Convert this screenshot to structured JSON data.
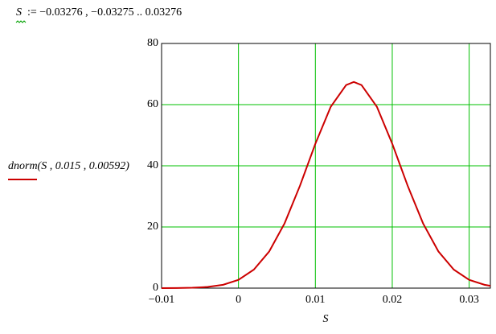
{
  "definition": {
    "variable": "S",
    "expression": ":= −0.03276 , −0.03275 .. 0.03276"
  },
  "chart_data": {
    "type": "line",
    "ylabel": "dnorm(S , 0.015 , 0.00592)",
    "xlabel": "S",
    "x": [
      -0.01,
      -0.008,
      -0.006,
      -0.004,
      -0.002,
      0,
      0.002,
      0.004,
      0.006,
      0.008,
      0.01,
      0.012,
      0.014,
      0.015,
      0.016,
      0.018,
      0.02,
      0.022,
      0.024,
      0.026,
      0.028,
      0.03,
      0.032,
      0.03276
    ],
    "values": [
      0.009,
      0.036,
      0.125,
      0.391,
      1.09,
      2.72,
      6.05,
      12.0,
      21.2,
      33.5,
      47.2,
      59.3,
      66.4,
      67.4,
      66.4,
      59.3,
      47.2,
      33.5,
      21.2,
      12.0,
      6.05,
      2.72,
      1.09,
      0.75
    ],
    "color": "#cc0000",
    "grid_color": "#00c000",
    "grid": true,
    "xlim": [
      -0.01,
      0.03276
    ],
    "ylim": [
      0,
      80
    ],
    "xticks": [
      {
        "value": -0.01,
        "label": "−0.01"
      },
      0,
      0.01,
      0.02,
      0.03
    ],
    "yticks": [
      0,
      20,
      40,
      60,
      80
    ]
  }
}
